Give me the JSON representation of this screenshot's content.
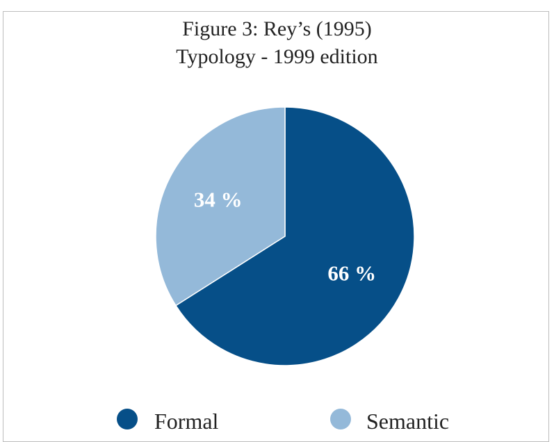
{
  "chart_data": {
    "type": "pie",
    "title_lines": [
      "Figure 3: Rey’s (1995)",
      "Typology - 1999 edition"
    ],
    "slices": [
      {
        "name": "Formal",
        "value": 66,
        "label": "66 %",
        "color": "#064f88"
      },
      {
        "name": "Semantic",
        "value": 34,
        "label": "34 %",
        "color": "#94b9d9"
      }
    ],
    "start": "12 o'clock",
    "direction": "clockwise",
    "legend_position": "bottom"
  }
}
